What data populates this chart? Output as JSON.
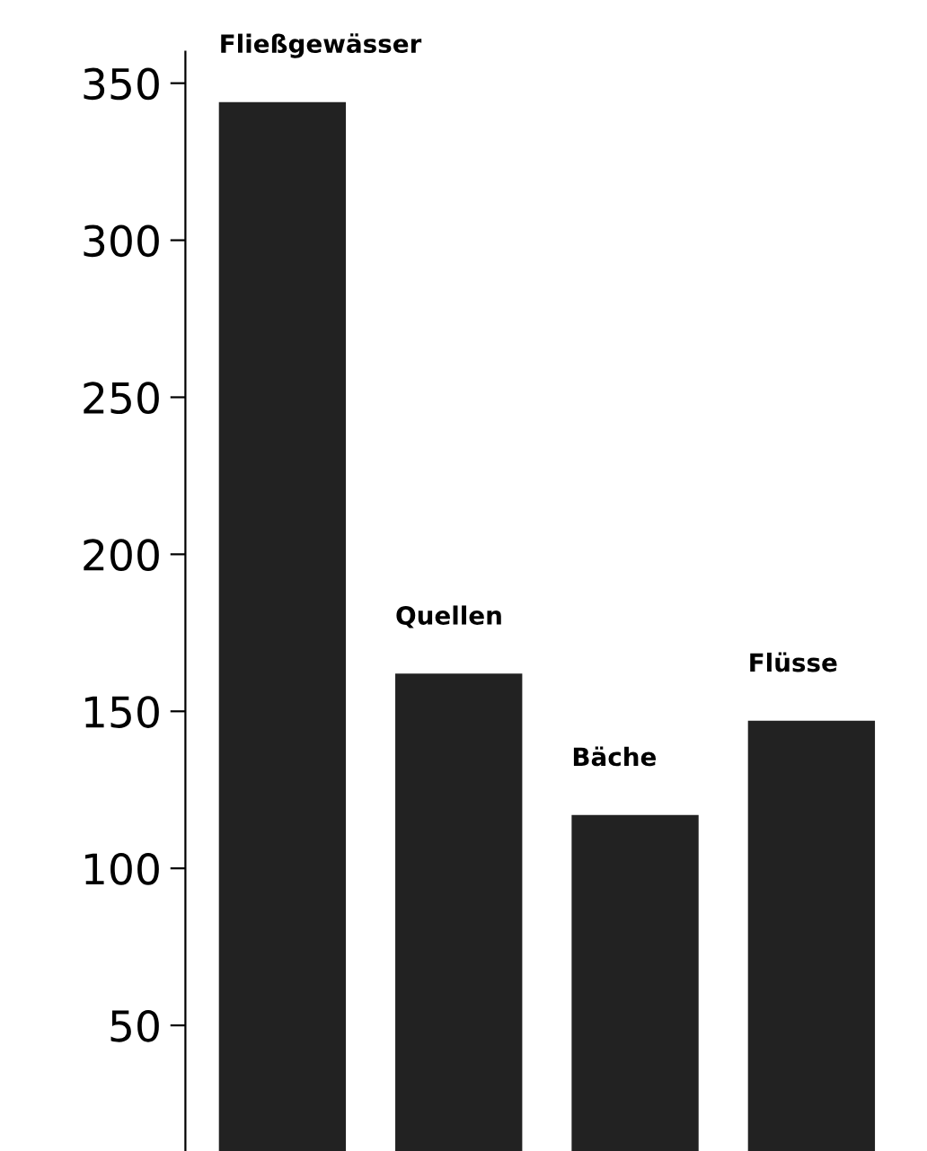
{
  "chart_data": {
    "type": "bar",
    "categories": [
      "Fließgewässer",
      "Quellen",
      "Bäche",
      "Flüsse"
    ],
    "values": [
      344,
      162,
      117,
      147
    ],
    "color": "#222222",
    "ylim": [
      10,
      360
    ],
    "yticks": [
      50,
      100,
      150,
      200,
      250,
      300,
      350
    ],
    "grid": false
  }
}
